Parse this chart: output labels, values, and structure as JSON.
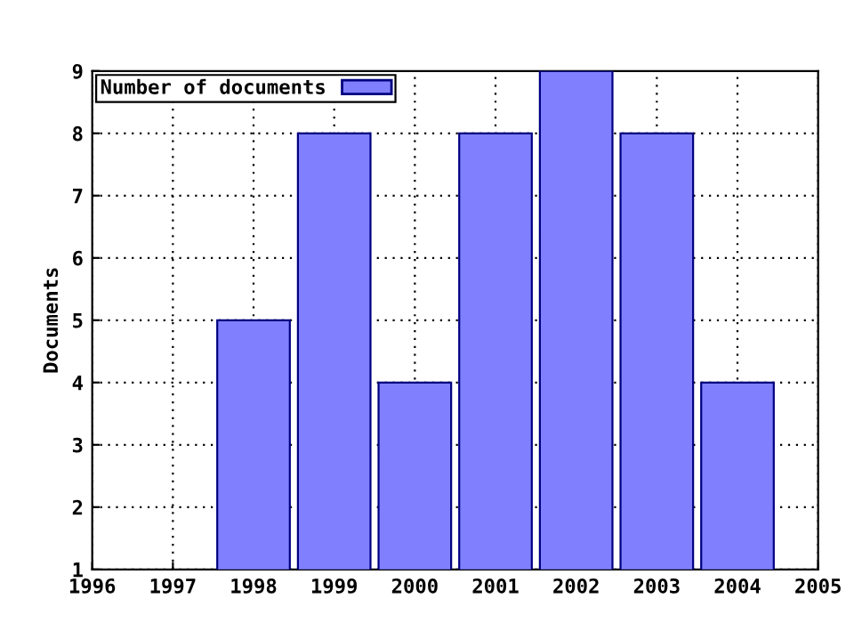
{
  "chart_data": {
    "type": "bar",
    "ylabel": "Documents",
    "x": [
      1998,
      1999,
      2000,
      2001,
      2002,
      2003,
      2004
    ],
    "series": [
      {
        "name": "Number of documents",
        "color": "#8080ff",
        "values": [
          5,
          8,
          4,
          8,
          9,
          8,
          4
        ]
      }
    ],
    "xlim": [
      1996,
      2005
    ],
    "xticks": [
      1996,
      1997,
      1998,
      1999,
      2000,
      2001,
      2002,
      2003,
      2004,
      2005
    ],
    "ylim": [
      1,
      9
    ],
    "yticks": [
      1,
      2,
      3,
      4,
      5,
      6,
      7,
      8,
      9
    ],
    "grid": true,
    "legend": "top left"
  }
}
